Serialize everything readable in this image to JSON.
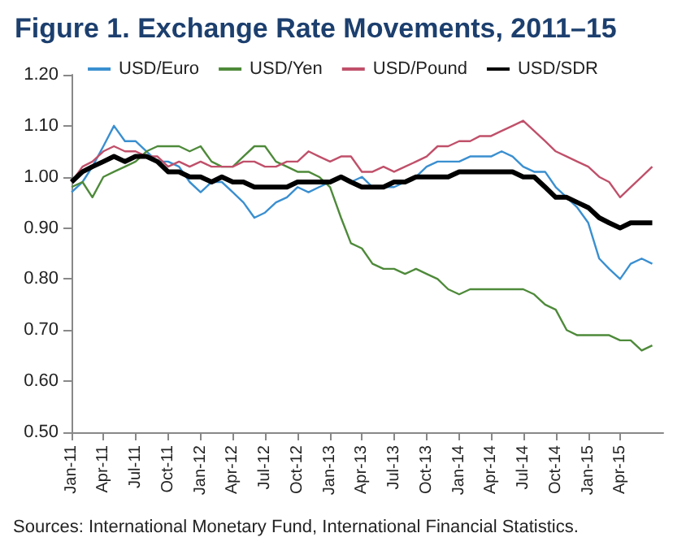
{
  "chart_data": {
    "type": "line",
    "title": "Figure 1. Exchange Rate Movements, 2011–15",
    "annotations": [
      "Sources: International Monetary Fund, International Financial Statistics."
    ],
    "x": [
      "2011-01",
      "2011-02",
      "2011-03",
      "2011-04",
      "2011-05",
      "2011-06",
      "2011-07",
      "2011-08",
      "2011-09",
      "2011-10",
      "2011-11",
      "2011-12",
      "2012-01",
      "2012-02",
      "2012-03",
      "2012-04",
      "2012-05",
      "2012-06",
      "2012-07",
      "2012-08",
      "2012-09",
      "2012-10",
      "2012-11",
      "2012-12",
      "2013-01",
      "2013-02",
      "2013-03",
      "2013-04",
      "2013-05",
      "2013-06",
      "2013-07",
      "2013-08",
      "2013-09",
      "2013-10",
      "2013-11",
      "2013-12",
      "2014-01",
      "2014-02",
      "2014-03",
      "2014-04",
      "2014-05",
      "2014-06",
      "2014-07",
      "2014-08",
      "2014-09",
      "2014-10",
      "2014-11",
      "2014-12",
      "2015-01",
      "2015-02",
      "2015-03",
      "2015-04",
      "2015-05",
      "2015-06",
      "2015-07"
    ],
    "series": [
      {
        "name": "USD/Euro",
        "color": "#3a8fd0",
        "values": [
          0.97,
          0.99,
          1.02,
          1.06,
          1.1,
          1.07,
          1.07,
          1.05,
          1.03,
          1.03,
          1.02,
          0.99,
          0.97,
          0.99,
          0.99,
          0.97,
          0.95,
          0.92,
          0.93,
          0.95,
          0.96,
          0.98,
          0.97,
          0.98,
          0.99,
          1.0,
          0.99,
          1.0,
          0.98,
          0.98,
          0.98,
          0.99,
          1.0,
          1.02,
          1.03,
          1.03,
          1.03,
          1.04,
          1.04,
          1.04,
          1.05,
          1.04,
          1.02,
          1.01,
          1.01,
          0.98,
          0.96,
          0.94,
          0.91,
          0.84,
          0.82,
          0.8,
          0.83,
          0.84,
          0.83
        ]
      },
      {
        "name": "USD/Yen",
        "color": "#4e8a3a",
        "values": [
          0.98,
          0.99,
          0.96,
          1.0,
          1.01,
          1.02,
          1.03,
          1.05,
          1.06,
          1.06,
          1.06,
          1.05,
          1.06,
          1.03,
          1.02,
          1.02,
          1.04,
          1.06,
          1.06,
          1.03,
          1.02,
          1.01,
          1.01,
          1.0,
          0.98,
          0.92,
          0.87,
          0.86,
          0.83,
          0.82,
          0.82,
          0.81,
          0.82,
          0.81,
          0.8,
          0.78,
          0.77,
          0.78,
          0.78,
          0.78,
          0.78,
          0.78,
          0.78,
          0.77,
          0.75,
          0.74,
          0.7,
          0.69,
          0.69,
          0.69,
          0.69,
          0.68,
          0.68,
          0.66,
          0.67
        ]
      },
      {
        "name": "USD/Pound",
        "color": "#c0506a",
        "values": [
          0.99,
          1.02,
          1.03,
          1.05,
          1.06,
          1.05,
          1.05,
          1.04,
          1.04,
          1.02,
          1.03,
          1.02,
          1.03,
          1.02,
          1.02,
          1.02,
          1.03,
          1.03,
          1.02,
          1.02,
          1.03,
          1.03,
          1.05,
          1.04,
          1.03,
          1.04,
          1.04,
          1.01,
          1.01,
          1.02,
          1.01,
          1.02,
          1.03,
          1.04,
          1.06,
          1.06,
          1.07,
          1.07,
          1.08,
          1.08,
          1.09,
          1.1,
          1.11,
          1.09,
          1.07,
          1.05,
          1.04,
          1.03,
          1.02,
          1.0,
          0.99,
          0.96,
          0.98,
          1.0,
          1.02
        ]
      },
      {
        "name": "USD/SDR",
        "color": "#000000",
        "values": [
          0.99,
          1.01,
          1.02,
          1.03,
          1.04,
          1.03,
          1.04,
          1.04,
          1.03,
          1.01,
          1.01,
          1.0,
          1.0,
          0.99,
          1.0,
          0.99,
          0.99,
          0.98,
          0.98,
          0.98,
          0.98,
          0.99,
          0.99,
          0.99,
          0.99,
          1.0,
          0.99,
          0.98,
          0.98,
          0.98,
          0.99,
          0.99,
          1.0,
          1.0,
          1.0,
          1.0,
          1.01,
          1.01,
          1.01,
          1.01,
          1.01,
          1.01,
          1.0,
          1.0,
          0.98,
          0.96,
          0.96,
          0.95,
          0.94,
          0.92,
          0.91,
          0.9,
          0.91,
          0.91,
          0.91
        ]
      }
    ],
    "xlim": [
      "2011-01",
      "2015-08"
    ],
    "xticks": [
      {
        "value": "2011-01",
        "label": "Jan-11"
      },
      {
        "value": "2011-04",
        "label": "Apr-11"
      },
      {
        "value": "2011-07",
        "label": "Jul-11"
      },
      {
        "value": "2011-10",
        "label": "Oct-11"
      },
      {
        "value": "2012-01",
        "label": "Jan-12"
      },
      {
        "value": "2012-04",
        "label": "Apr-12"
      },
      {
        "value": "2012-07",
        "label": "Jul-12"
      },
      {
        "value": "2012-10",
        "label": "Oct-12"
      },
      {
        "value": "2013-01",
        "label": "Jan-13"
      },
      {
        "value": "2013-04",
        "label": "Apr-13"
      },
      {
        "value": "2013-07",
        "label": "Jul-13"
      },
      {
        "value": "2013-10",
        "label": "Oct-13"
      },
      {
        "value": "2014-01",
        "label": "Jan-14"
      },
      {
        "value": "2014-04",
        "label": "Apr-14"
      },
      {
        "value": "2014-07",
        "label": "Jul-14"
      },
      {
        "value": "2014-10",
        "label": "Oct-14"
      },
      {
        "value": "2015-01",
        "label": "Jan-15"
      },
      {
        "value": "2015-04",
        "label": "Apr-15"
      }
    ],
    "ylim": [
      0.5,
      1.2
    ],
    "yticks": [
      {
        "value": 0.5,
        "label": "0.50"
      },
      {
        "value": 0.6,
        "label": "0.60"
      },
      {
        "value": 0.7,
        "label": "0.70"
      },
      {
        "value": 0.8,
        "label": "0.80"
      },
      {
        "value": 0.9,
        "label": "0.90"
      },
      {
        "value": 1.0,
        "label": "1.00"
      },
      {
        "value": 1.1,
        "label": "1.10"
      },
      {
        "value": 1.2,
        "label": "1.20"
      }
    ],
    "legend": "top",
    "grid": false,
    "marker": "none",
    "line_style": "solid"
  }
}
